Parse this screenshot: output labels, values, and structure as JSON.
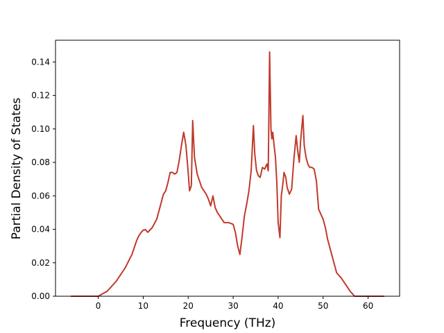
{
  "chart_data": {
    "type": "line",
    "xlabel": "Frequency (THz)",
    "ylabel": "Partial Density of States",
    "xlim": [
      -9.5,
      67
    ],
    "ylim": [
      0.0,
      0.153
    ],
    "xticks": [
      0,
      10,
      20,
      30,
      40,
      50,
      60
    ],
    "yticks": [
      0.0,
      0.02,
      0.04,
      0.06,
      0.08,
      0.1,
      0.12,
      0.14
    ],
    "xtick_labels": [
      "0",
      "10",
      "20",
      "30",
      "40",
      "50",
      "60"
    ],
    "ytick_labels": [
      "0.00",
      "0.02",
      "0.04",
      "0.06",
      "0.08",
      "0.10",
      "0.12",
      "0.14"
    ],
    "grid": false,
    "legend": "none",
    "series": [
      {
        "color": "#c0392b",
        "x": [
          -6.0,
          0.0,
          2.0,
          4.0,
          6.0,
          7.5,
          8.5,
          9.0,
          9.5,
          10.0,
          10.5,
          11.0,
          12.0,
          13.0,
          14.0,
          14.5,
          15.0,
          15.5,
          16.0,
          16.5,
          17.0,
          17.5,
          18.0,
          18.5,
          19.0,
          19.5,
          20.0,
          20.3,
          20.7,
          21.0,
          21.4,
          22.0,
          23.0,
          24.0,
          24.5,
          25.0,
          25.5,
          26.0,
          26.5,
          27.0,
          28.0,
          29.0,
          30.0,
          30.5,
          31.0,
          31.5,
          32.0,
          32.5,
          33.0,
          33.5,
          34.0,
          34.5,
          34.8,
          35.2,
          35.6,
          36.0,
          36.5,
          37.0,
          37.5,
          37.8,
          38.1,
          38.4,
          38.6,
          38.8,
          39.1,
          39.4,
          39.7,
          40.0,
          40.4,
          40.7,
          41.0,
          41.3,
          41.7,
          42.0,
          42.5,
          43.0,
          43.5,
          44.0,
          44.3,
          44.7,
          45.0,
          45.5,
          45.8,
          46.2,
          46.6,
          47.0,
          47.5,
          48.0,
          48.5,
          49.0,
          49.5,
          50.0,
          50.5,
          51.0,
          51.5,
          52.0,
          53.0,
          54.0,
          55.0,
          56.0,
          57.0,
          57.8,
          58.0,
          59.0,
          63.5
        ],
        "y": [
          0.0,
          0.0,
          0.003,
          0.009,
          0.017,
          0.025,
          0.033,
          0.036,
          0.038,
          0.0395,
          0.0398,
          0.0382,
          0.041,
          0.046,
          0.056,
          0.061,
          0.063,
          0.068,
          0.074,
          0.074,
          0.073,
          0.074,
          0.081,
          0.09,
          0.098,
          0.09,
          0.074,
          0.063,
          0.066,
          0.105,
          0.083,
          0.073,
          0.065,
          0.061,
          0.058,
          0.054,
          0.06,
          0.053,
          0.05,
          0.048,
          0.044,
          0.044,
          0.043,
          0.038,
          0.03,
          0.025,
          0.036,
          0.048,
          0.055,
          0.063,
          0.075,
          0.102,
          0.085,
          0.075,
          0.072,
          0.071,
          0.077,
          0.076,
          0.079,
          0.075,
          0.146,
          0.1,
          0.094,
          0.098,
          0.09,
          0.083,
          0.068,
          0.044,
          0.035,
          0.06,
          0.066,
          0.074,
          0.071,
          0.065,
          0.061,
          0.064,
          0.082,
          0.096,
          0.088,
          0.08,
          0.093,
          0.108,
          0.09,
          0.083,
          0.079,
          0.077,
          0.077,
          0.076,
          0.069,
          0.052,
          0.049,
          0.046,
          0.041,
          0.034,
          0.029,
          0.024,
          0.014,
          0.011,
          0.007,
          0.003,
          0.0,
          0.0,
          0.0,
          0.0,
          0.0
        ]
      }
    ]
  }
}
